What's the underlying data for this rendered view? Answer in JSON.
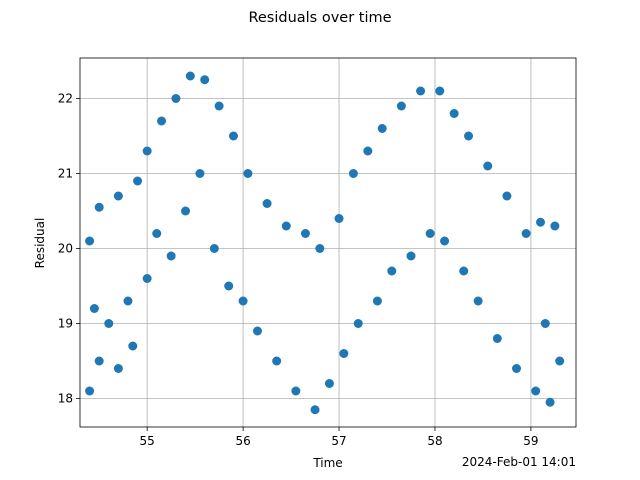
{
  "chart_data": {
    "type": "scatter",
    "title": "Residuals over time",
    "xlabel": "Time",
    "ylabel": "Residual",
    "x_offset_label": "2024-Feb-01 14:01",
    "xlim": [
      54.3,
      59.47
    ],
    "ylim": [
      17.62,
      22.54
    ],
    "xticks": [
      55,
      56,
      57,
      58,
      59
    ],
    "yticks": [
      18,
      19,
      20,
      21,
      22
    ],
    "grid": true,
    "legend": "none",
    "marker_color": "#1f77b4",
    "points": [
      [
        54.4,
        18.1
      ],
      [
        54.4,
        20.1
      ],
      [
        54.45,
        19.2
      ],
      [
        54.5,
        18.5
      ],
      [
        54.5,
        20.55
      ],
      [
        54.6,
        19.0
      ],
      [
        54.7,
        18.4
      ],
      [
        54.7,
        20.7
      ],
      [
        54.8,
        19.3
      ],
      [
        54.85,
        18.7
      ],
      [
        54.9,
        20.9
      ],
      [
        55.0,
        19.6
      ],
      [
        55.0,
        21.3
      ],
      [
        55.1,
        20.2
      ],
      [
        55.15,
        21.7
      ],
      [
        55.25,
        19.9
      ],
      [
        55.3,
        22.0
      ],
      [
        55.4,
        20.5
      ],
      [
        55.45,
        22.3
      ],
      [
        55.55,
        21.0
      ],
      [
        55.6,
        22.25
      ],
      [
        55.7,
        20.0
      ],
      [
        55.75,
        21.9
      ],
      [
        55.85,
        19.5
      ],
      [
        55.9,
        21.5
      ],
      [
        56.0,
        19.3
      ],
      [
        56.05,
        21.0
      ],
      [
        56.15,
        18.9
      ],
      [
        56.25,
        20.6
      ],
      [
        56.35,
        18.5
      ],
      [
        56.45,
        20.3
      ],
      [
        56.55,
        18.1
      ],
      [
        56.65,
        20.2
      ],
      [
        56.75,
        17.85
      ],
      [
        56.8,
        20.0
      ],
      [
        56.9,
        18.2
      ],
      [
        57.0,
        20.4
      ],
      [
        57.05,
        18.6
      ],
      [
        57.15,
        21.0
      ],
      [
        57.2,
        19.0
      ],
      [
        57.3,
        21.3
      ],
      [
        57.4,
        19.3
      ],
      [
        57.45,
        21.6
      ],
      [
        57.55,
        19.7
      ],
      [
        57.65,
        21.9
      ],
      [
        57.75,
        19.9
      ],
      [
        57.85,
        22.1
      ],
      [
        57.95,
        20.2
      ],
      [
        58.05,
        22.1
      ],
      [
        58.1,
        20.1
      ],
      [
        58.2,
        21.8
      ],
      [
        58.3,
        19.7
      ],
      [
        58.35,
        21.5
      ],
      [
        58.45,
        19.3
      ],
      [
        58.55,
        21.1
      ],
      [
        58.65,
        18.8
      ],
      [
        58.75,
        20.7
      ],
      [
        58.85,
        18.4
      ],
      [
        58.95,
        20.2
      ],
      [
        59.05,
        18.1
      ],
      [
        59.1,
        20.35
      ],
      [
        59.15,
        19.0
      ],
      [
        59.2,
        17.95
      ],
      [
        59.25,
        20.3
      ],
      [
        59.3,
        18.5
      ]
    ]
  }
}
